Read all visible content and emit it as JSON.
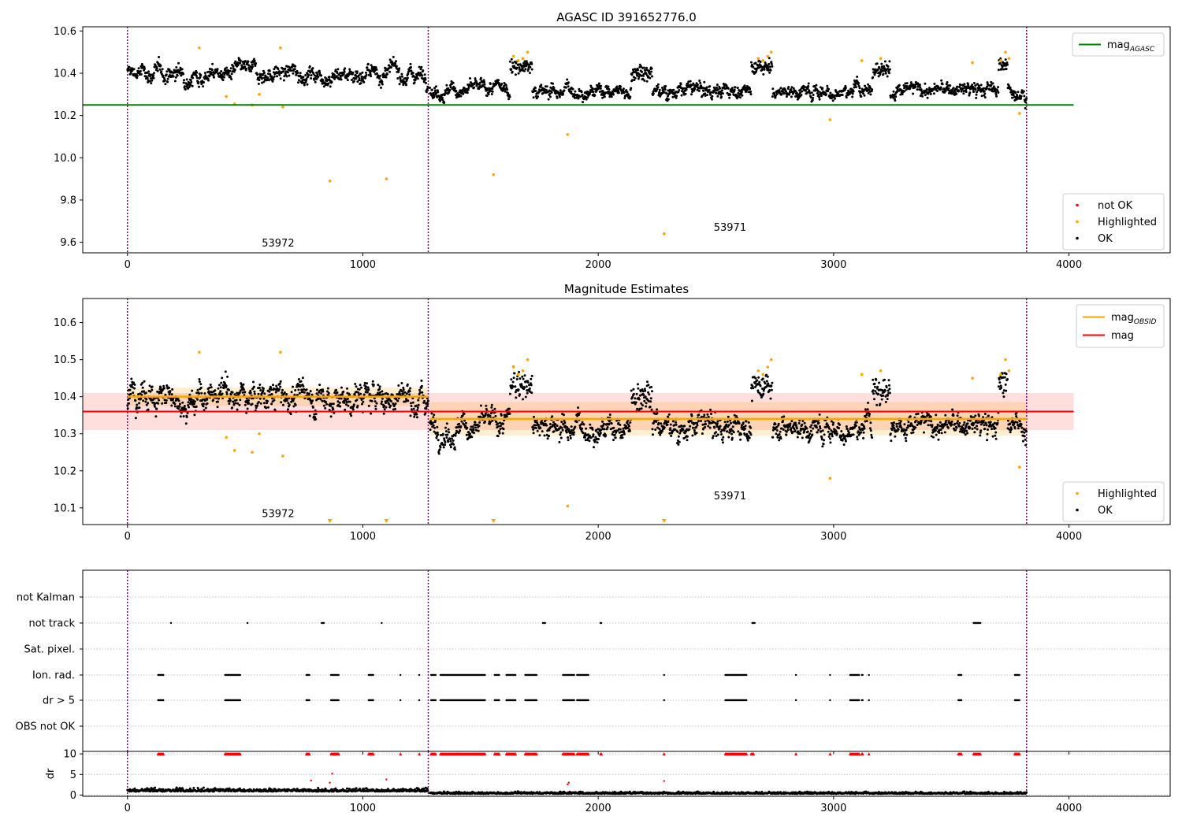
{
  "chart_data": [
    {
      "id": "agasc",
      "type": "scatter",
      "title": "AGASC ID 391652776.0",
      "xlabel": "",
      "ylabel": "",
      "xlim": [
        -190,
        4430
      ],
      "ylim": [
        9.55,
        10.62
      ],
      "x_ticks": [
        0,
        1000,
        2000,
        3000,
        4000
      ],
      "y_ticks": [
        9.6,
        9.8,
        10.0,
        10.2,
        10.4,
        10.6
      ],
      "grid": false,
      "legend_top": {
        "position": "upper right",
        "entries": [
          {
            "label": "mag",
            "sub": "AGASC",
            "color": "#008000",
            "kind": "line"
          }
        ]
      },
      "legend_bottom": {
        "position": "lower right",
        "entries": [
          {
            "label": "not OK",
            "color": "#ff0000",
            "kind": "dot"
          },
          {
            "label": "Highlighted",
            "color": "#ffa500",
            "kind": "dot"
          },
          {
            "label": "OK",
            "color": "#000000",
            "kind": "dot"
          }
        ]
      },
      "obs_boundaries": [
        0,
        1278,
        3820
      ],
      "obs_labels": [
        {
          "text": "53972",
          "x": 640,
          "y": 9.58
        },
        {
          "text": "53971",
          "x": 2560,
          "y": 9.655
        }
      ],
      "reference_line": {
        "name": "mag_AGASC",
        "value": 10.25,
        "x": [
          -190,
          4020
        ],
        "color": "#008000"
      },
      "segments": [
        {
          "x": [
            0,
            1278
          ],
          "base": 10.4,
          "noise": 0.035
        },
        {
          "x": [
            1285,
            3820
          ],
          "base": 10.32,
          "noise": 0.03
        }
      ],
      "bumps": [
        {
          "x": [
            1625,
            1720
          ],
          "level": 10.43
        },
        {
          "x": [
            2140,
            2230
          ],
          "level": 10.4
        },
        {
          "x": [
            2650,
            2740
          ],
          "level": 10.43
        },
        {
          "x": [
            3165,
            3240
          ],
          "level": 10.42
        },
        {
          "x": [
            3700,
            3740
          ],
          "level": 10.44
        }
      ],
      "highlighted_points": [
        [
          305,
          10.52
        ],
        [
          420,
          10.29
        ],
        [
          455,
          10.255
        ],
        [
          530,
          10.25
        ],
        [
          560,
          10.3
        ],
        [
          650,
          10.52
        ],
        [
          660,
          10.24
        ],
        [
          860,
          9.89
        ],
        [
          1100,
          9.9
        ],
        [
          1555,
          9.92
        ],
        [
          1870,
          10.11
        ],
        [
          2280,
          9.64
        ],
        [
          2985,
          10.18
        ],
        [
          3790,
          10.21
        ],
        [
          1640,
          10.48
        ],
        [
          1660,
          10.46
        ],
        [
          1680,
          10.47
        ],
        [
          1700,
          10.5
        ],
        [
          2680,
          10.47
        ],
        [
          2700,
          10.46
        ],
        [
          2720,
          10.48
        ],
        [
          2735,
          10.5
        ],
        [
          3120,
          10.46
        ],
        [
          3200,
          10.47
        ],
        [
          3590,
          10.45
        ],
        [
          3730,
          10.5
        ],
        [
          3745,
          10.47
        ],
        [
          3710,
          10.46
        ]
      ]
    },
    {
      "id": "estimates",
      "type": "scatter",
      "title": "Magnitude Estimates",
      "xlabel": "",
      "ylabel": "",
      "xlim": [
        -190,
        4430
      ],
      "ylim": [
        10.055,
        10.665
      ],
      "x_ticks": [
        0,
        1000,
        2000,
        3000,
        4000
      ],
      "y_ticks": [
        10.1,
        10.2,
        10.3,
        10.4,
        10.5,
        10.6
      ],
      "grid": false,
      "legend_top": {
        "position": "upper right",
        "entries": [
          {
            "label": "mag",
            "sub": "OBSID",
            "color": "#ffa500",
            "kind": "line"
          },
          {
            "label": "mag",
            "sub": "",
            "color": "#ff0000",
            "kind": "line"
          }
        ]
      },
      "legend_bottom": {
        "position": "lower right",
        "entries": [
          {
            "label": "Highlighted",
            "color": "#ffa500",
            "kind": "dot"
          },
          {
            "label": "OK",
            "color": "#000000",
            "kind": "dot"
          }
        ]
      },
      "obs_boundaries": [
        0,
        1278,
        3820
      ],
      "obs_labels": [
        {
          "text": "53972",
          "x": 640,
          "y": 10.075
        },
        {
          "text": "53971",
          "x": 2560,
          "y": 10.123
        }
      ],
      "mag_line": {
        "value": 10.36,
        "band": [
          10.31,
          10.41
        ],
        "x": [
          -190,
          4020
        ],
        "color": "#ff0000"
      },
      "obsid_mag": [
        {
          "x": [
            0,
            1278
          ],
          "value": 10.4,
          "band": [
            10.375,
            10.425
          ]
        },
        {
          "x": [
            1285,
            3820
          ],
          "value": 10.34,
          "band": [
            10.295,
            10.385
          ]
        }
      ],
      "segments": [
        {
          "x": [
            0,
            1278
          ],
          "base": 10.4,
          "noise": 0.035
        },
        {
          "x": [
            1285,
            3820
          ],
          "base": 10.32,
          "noise": 0.03
        }
      ],
      "bumps": [
        {
          "x": [
            1625,
            1720
          ],
          "level": 10.43
        },
        {
          "x": [
            2140,
            2230
          ],
          "level": 10.4
        },
        {
          "x": [
            2650,
            2740
          ],
          "level": 10.43
        },
        {
          "x": [
            3165,
            3240
          ],
          "level": 10.42
        },
        {
          "x": [
            3700,
            3740
          ],
          "level": 10.44
        }
      ],
      "highlighted_points": [
        [
          305,
          10.52
        ],
        [
          420,
          10.29
        ],
        [
          455,
          10.255
        ],
        [
          530,
          10.25
        ],
        [
          560,
          10.3
        ],
        [
          650,
          10.52
        ],
        [
          660,
          10.24
        ],
        [
          1870,
          10.105
        ],
        [
          2985,
          10.18
        ],
        [
          3790,
          10.21
        ],
        [
          1640,
          10.48
        ],
        [
          1660,
          10.46
        ],
        [
          1680,
          10.47
        ],
        [
          1700,
          10.5
        ],
        [
          2680,
          10.47
        ],
        [
          2700,
          10.46
        ],
        [
          2720,
          10.48
        ],
        [
          2735,
          10.5
        ],
        [
          3120,
          10.46
        ],
        [
          3200,
          10.47
        ],
        [
          3590,
          10.45
        ],
        [
          3730,
          10.5
        ],
        [
          3745,
          10.47
        ],
        [
          3710,
          10.46
        ]
      ],
      "offscale_markers": [
        860,
        1100,
        1555,
        2280
      ]
    },
    {
      "id": "flags",
      "type": "scatter",
      "title": "",
      "xlabel": "",
      "ylabel": "",
      "xlim": [
        -190,
        4430
      ],
      "categories": [
        "not Kalman",
        "not track",
        "Sat. pixel.",
        "Ion. rad.",
        "dr > 5",
        "OBS not OK"
      ],
      "x_ticks": [
        0,
        1000,
        2000,
        3000,
        4000
      ],
      "grid": true,
      "obs_boundaries": [
        0,
        1278,
        3820
      ],
      "flag_points": {
        "not Kalman": [],
        "not track": [
          [
            185,
            188
          ],
          [
            510,
            510
          ],
          [
            825,
            835
          ],
          [
            1080,
            1082
          ],
          [
            1765,
            1775
          ],
          [
            2010,
            2015
          ],
          [
            2655,
            2665
          ],
          [
            3595,
            3625
          ]
        ],
        "Sat. pixel.": [],
        "Ion. rad.": [
          [
            130,
            155
          ],
          [
            415,
            480
          ],
          [
            760,
            775
          ],
          [
            865,
            900
          ],
          [
            1025,
            1045
          ],
          [
            1160,
            1160
          ],
          [
            1240,
            1242
          ],
          [
            1290,
            1310
          ],
          [
            1330,
            1520
          ],
          [
            1560,
            1580
          ],
          [
            1610,
            1650
          ],
          [
            1690,
            1740
          ],
          [
            1850,
            1900
          ],
          [
            1910,
            1960
          ],
          [
            2280,
            2280
          ],
          [
            2540,
            2630
          ],
          [
            2840,
            2840
          ],
          [
            2985,
            2985
          ],
          [
            3070,
            3110
          ],
          [
            3120,
            3125
          ],
          [
            3150,
            3150
          ],
          [
            3530,
            3545
          ],
          [
            3770,
            3790
          ]
        ],
        "dr > 5": [
          [
            130,
            155
          ],
          [
            415,
            480
          ],
          [
            760,
            775
          ],
          [
            865,
            900
          ],
          [
            1025,
            1045
          ],
          [
            1160,
            1160
          ],
          [
            1240,
            1242
          ],
          [
            1290,
            1310
          ],
          [
            1330,
            1520
          ],
          [
            1560,
            1580
          ],
          [
            1610,
            1650
          ],
          [
            1690,
            1740
          ],
          [
            1850,
            1900
          ],
          [
            1910,
            1960
          ],
          [
            2280,
            2280
          ],
          [
            2540,
            2630
          ],
          [
            2840,
            2840
          ],
          [
            2985,
            2985
          ],
          [
            3070,
            3110
          ],
          [
            3120,
            3125
          ],
          [
            3150,
            3150
          ],
          [
            3530,
            3545
          ],
          [
            3770,
            3790
          ]
        ],
        "OBS not OK": []
      }
    },
    {
      "id": "dr",
      "type": "scatter",
      "title": "",
      "xlabel": "",
      "ylabel": "dr",
      "xlim": [
        -190,
        4430
      ],
      "ylim": [
        -0.3,
        10.6
      ],
      "x_ticks": [
        0,
        1000,
        2000,
        3000,
        4000
      ],
      "y_ticks": [
        0,
        5,
        10
      ],
      "grid": true,
      "obs_boundaries": [
        0,
        1278,
        3820
      ],
      "segments": [
        {
          "x": [
            0,
            1278
          ],
          "base": 1.0,
          "noise": 0.5
        },
        {
          "x": [
            1285,
            3820
          ],
          "base": 0.4,
          "noise": 0.3
        }
      ],
      "clipped_ranges": [
        [
          130,
          155
        ],
        [
          415,
          480
        ],
        [
          760,
          775
        ],
        [
          865,
          900
        ],
        [
          1025,
          1045
        ],
        [
          1160,
          1160
        ],
        [
          1240,
          1242
        ],
        [
          1290,
          1310
        ],
        [
          1330,
          1520
        ],
        [
          1560,
          1580
        ],
        [
          1610,
          1650
        ],
        [
          1690,
          1740
        ],
        [
          1850,
          1900
        ],
        [
          1910,
          1960
        ],
        [
          2010,
          2015
        ],
        [
          2280,
          2280
        ],
        [
          2540,
          2630
        ],
        [
          2650,
          2660
        ],
        [
          2840,
          2840
        ],
        [
          2985,
          2985
        ],
        [
          3070,
          3110
        ],
        [
          3120,
          3125
        ],
        [
          3150,
          3150
        ],
        [
          3530,
          3545
        ],
        [
          3595,
          3625
        ],
        [
          3770,
          3790
        ]
      ],
      "outliers": [
        [
          780,
          3.5
        ],
        [
          860,
          3.0
        ],
        [
          870,
          5.2
        ],
        [
          1100,
          3.8
        ],
        [
          1870,
          2.6
        ],
        [
          1875,
          3.0
        ],
        [
          2280,
          3.4
        ]
      ]
    }
  ]
}
